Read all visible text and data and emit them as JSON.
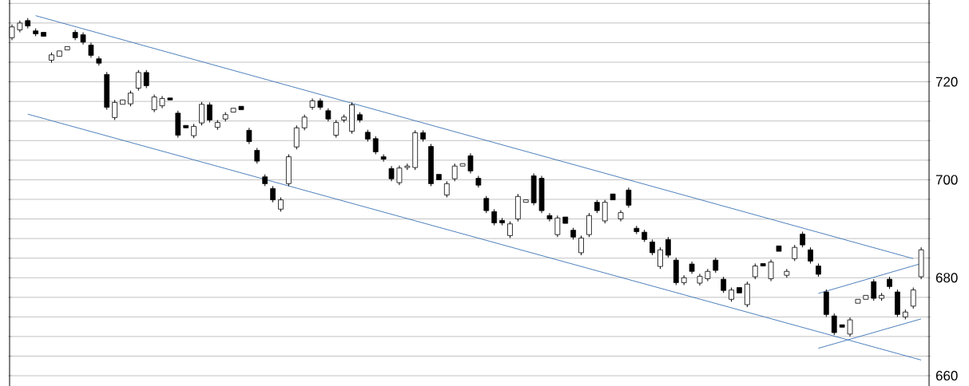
{
  "chart_data": {
    "type": "candlestick",
    "color": "#000000",
    "categories": [
      null,
      null,
      null,
      null,
      null,
      null,
      null,
      null,
      null,
      null,
      null,
      null,
      null,
      null,
      null,
      null,
      null,
      null,
      null,
      null,
      null,
      null,
      null,
      null,
      null,
      null,
      null,
      null,
      null,
      null,
      null,
      null,
      null,
      null,
      null,
      null,
      null,
      null,
      null,
      null,
      null,
      null,
      null,
      null,
      null,
      null,
      null,
      null,
      null,
      null,
      null,
      null,
      null,
      null,
      null,
      null,
      null,
      null,
      null,
      null,
      null,
      null,
      null,
      null,
      null,
      null,
      null,
      null,
      null,
      null,
      null,
      null,
      null,
      null,
      null,
      null,
      null,
      null,
      null,
      null,
      null,
      null,
      null,
      null,
      null,
      null,
      null,
      null,
      null,
      null,
      null,
      null,
      null,
      null,
      null,
      null,
      null,
      null,
      null,
      null,
      null,
      null,
      null,
      null,
      null,
      null,
      null,
      null,
      null,
      null,
      null,
      null,
      null,
      null,
      null,
      null
    ],
    "ohlc": [
      [
        729.0,
        731.7,
        728.5,
        731.2
      ],
      [
        730.6,
        732.5,
        730.1,
        732.0
      ],
      [
        732.5,
        733.0,
        730.9,
        731.4
      ],
      [
        730.4,
        730.9,
        729.3,
        729.8
      ],
      [
        730.1,
        730.1,
        729.3,
        729.3
      ],
      [
        724.4,
        726.0,
        723.9,
        725.5
      ],
      [
        725.2,
        726.3,
        725.2,
        726.3
      ],
      [
        726.5,
        727.2,
        726.5,
        727.2
      ],
      [
        730.1,
        730.6,
        728.5,
        729.0
      ],
      [
        729.6,
        730.1,
        727.6,
        728.1
      ],
      [
        727.5,
        728.0,
        724.9,
        725.4
      ],
      [
        724.7,
        725.2,
        723.3,
        723.8
      ],
      [
        721.5,
        722.0,
        714.3,
        714.8
      ],
      [
        712.7,
        716.3,
        712.2,
        715.8
      ],
      [
        715.4,
        716.3,
        715.4,
        716.3
      ],
      [
        715.5,
        718.2,
        715.0,
        717.7
      ],
      [
        718.7,
        722.4,
        718.2,
        721.9
      ],
      [
        721.9,
        722.4,
        718.7,
        719.2
      ],
      [
        714.3,
        717.4,
        713.8,
        716.9
      ],
      [
        715.1,
        717.1,
        714.6,
        716.6
      ],
      [
        716.7,
        716.7,
        716.3,
        716.3
      ],
      [
        713.6,
        714.1,
        708.6,
        709.1
      ],
      [
        711.1,
        711.1,
        710.6,
        710.6
      ],
      [
        709.0,
        711.4,
        708.5,
        710.9
      ],
      [
        711.6,
        715.9,
        711.1,
        715.4
      ],
      [
        715.3,
        715.8,
        711.7,
        712.2
      ],
      [
        710.7,
        712.2,
        710.2,
        711.7
      ],
      [
        712.4,
        713.8,
        711.9,
        713.3
      ],
      [
        713.8,
        714.6,
        713.8,
        714.6
      ],
      [
        715.0,
        715.0,
        714.3,
        714.3
      ],
      [
        710.1,
        710.6,
        707.3,
        707.8
      ],
      [
        706.0,
        706.5,
        703.3,
        703.8
      ],
      [
        700.6,
        701.1,
        698.7,
        699.2
      ],
      [
        698.2,
        698.7,
        695.4,
        695.9
      ],
      [
        694.0,
        696.4,
        693.5,
        695.9
      ],
      [
        699.2,
        705.2,
        698.7,
        704.7
      ],
      [
        706.7,
        711.1,
        706.2,
        710.6
      ],
      [
        710.6,
        713.3,
        710.1,
        712.8
      ],
      [
        714.8,
        716.6,
        714.3,
        716.1
      ],
      [
        716.1,
        716.6,
        714.3,
        714.8
      ],
      [
        714.1,
        714.6,
        711.9,
        712.4
      ],
      [
        709.1,
        712.2,
        708.6,
        711.7
      ],
      [
        712.2,
        713.3,
        711.7,
        712.8
      ],
      [
        709.9,
        715.8,
        709.4,
        715.3
      ],
      [
        713.3,
        713.8,
        711.7,
        712.2
      ],
      [
        709.7,
        710.2,
        707.8,
        708.3
      ],
      [
        708.4,
        708.9,
        705.2,
        705.7
      ],
      [
        704.7,
        705.2,
        703.7,
        704.2
      ],
      [
        702.3,
        702.8,
        699.7,
        700.2
      ],
      [
        699.4,
        702.9,
        698.9,
        702.4
      ],
      [
        702.5,
        703.3,
        702.0,
        702.8
      ],
      [
        702.5,
        710.1,
        702.0,
        709.6
      ],
      [
        709.6,
        710.1,
        707.8,
        708.3
      ],
      [
        706.8,
        707.3,
        698.7,
        699.2
      ],
      [
        701.1,
        701.1,
        700.0,
        700.0
      ],
      [
        696.9,
        699.7,
        696.4,
        699.2
      ],
      [
        700.2,
        703.3,
        699.7,
        702.8
      ],
      [
        702.8,
        703.3,
        702.8,
        703.3
      ],
      [
        704.9,
        705.4,
        701.3,
        701.8
      ],
      [
        700.3,
        700.8,
        698.4,
        698.9
      ],
      [
        696.2,
        696.7,
        693.2,
        693.7
      ],
      [
        693.5,
        694.0,
        690.7,
        691.2
      ],
      [
        691.7,
        692.2,
        690.7,
        691.2
      ],
      [
        688.6,
        691.5,
        688.1,
        691.0
      ],
      [
        692.0,
        697.1,
        691.5,
        696.6
      ],
      [
        695.4,
        695.9,
        695.4,
        695.9
      ],
      [
        700.8,
        701.3,
        694.8,
        695.3
      ],
      [
        700.3,
        700.8,
        693.2,
        693.7
      ],
      [
        692.7,
        693.2,
        691.5,
        692.0
      ],
      [
        688.8,
        692.7,
        688.3,
        692.2
      ],
      [
        692.4,
        692.4,
        691.1,
        691.1
      ],
      [
        689.7,
        690.2,
        687.8,
        688.3
      ],
      [
        685.1,
        688.6,
        684.6,
        688.1
      ],
      [
        688.8,
        693.2,
        688.3,
        692.7
      ],
      [
        695.4,
        695.9,
        693.2,
        693.7
      ],
      [
        691.6,
        695.9,
        691.1,
        695.4
      ],
      [
        697.1,
        697.1,
        695.9,
        695.9
      ],
      [
        692.0,
        693.8,
        691.5,
        693.3
      ],
      [
        697.9,
        698.4,
        694.3,
        694.8
      ],
      [
        690.1,
        690.6,
        688.9,
        689.4
      ],
      [
        689.3,
        689.8,
        687.3,
        687.8
      ],
      [
        687.3,
        687.8,
        684.6,
        685.1
      ],
      [
        682.3,
        686.2,
        681.8,
        685.7
      ],
      [
        687.8,
        688.3,
        684.1,
        684.6
      ],
      [
        683.6,
        684.1,
        678.5,
        679.0
      ],
      [
        679.0,
        680.5,
        678.5,
        680.0
      ],
      [
        682.8,
        683.3,
        680.8,
        681.3
      ],
      [
        678.9,
        680.8,
        678.4,
        680.3
      ],
      [
        679.8,
        681.8,
        679.3,
        681.3
      ],
      [
        683.6,
        684.1,
        681.0,
        681.5
      ],
      [
        679.7,
        680.2,
        676.9,
        677.4
      ],
      [
        675.6,
        678.0,
        675.1,
        677.5
      ],
      [
        678.0,
        678.0,
        676.9,
        676.9
      ],
      [
        674.5,
        679.2,
        674.0,
        678.7
      ],
      [
        680.2,
        682.9,
        679.7,
        682.4
      ],
      [
        682.9,
        682.9,
        682.4,
        682.4
      ],
      [
        679.8,
        683.7,
        679.3,
        683.2
      ],
      [
        686.5,
        686.5,
        685.4,
        685.4
      ],
      [
        680.5,
        681.8,
        680.0,
        681.3
      ],
      [
        683.9,
        686.7,
        683.4,
        686.2
      ],
      [
        688.9,
        689.4,
        686.2,
        686.7
      ],
      [
        685.7,
        686.2,
        682.9,
        683.4
      ],
      [
        682.4,
        682.9,
        680.2,
        680.7
      ],
      [
        677.1,
        677.6,
        672.0,
        672.5
      ],
      [
        672.2,
        672.7,
        668.3,
        668.8
      ],
      [
        670.4,
        670.4,
        669.9,
        669.9
      ],
      [
        668.5,
        671.9,
        668.0,
        671.4
      ],
      [
        674.8,
        675.6,
        674.8,
        675.6
      ],
      [
        675.6,
        676.4,
        675.6,
        676.4
      ],
      [
        679.2,
        679.7,
        675.3,
        675.8
      ],
      [
        675.8,
        676.9,
        675.3,
        676.4
      ],
      [
        679.7,
        680.2,
        677.7,
        678.2
      ],
      [
        677.1,
        677.6,
        672.0,
        672.5
      ],
      [
        672.0,
        673.5,
        671.5,
        673.0
      ],
      [
        674.2,
        678.0,
        673.7,
        677.5
      ],
      [
        680.2,
        686.2,
        679.7,
        685.7
      ]
    ],
    "series": [
      {
        "type": "line",
        "color": "#4f81bd",
        "values": [
          null,
          null,
          null,
          733.5,
          null,
          null,
          null,
          null,
          null,
          null,
          null,
          null,
          null,
          null,
          null,
          null,
          null,
          null,
          null,
          null,
          null,
          null,
          null,
          null,
          null,
          null,
          null,
          null,
          null,
          null,
          null,
          null,
          null,
          null,
          null,
          null,
          null,
          null,
          null,
          null,
          null,
          null,
          null,
          null,
          null,
          null,
          null,
          null,
          null,
          null,
          null,
          null,
          null,
          null,
          null,
          null,
          null,
          null,
          null,
          null,
          null,
          null,
          null,
          null,
          null,
          null,
          null,
          null,
          null,
          null,
          null,
          null,
          null,
          null,
          null,
          null,
          null,
          null,
          null,
          null,
          null,
          null,
          null,
          null,
          null,
          null,
          null,
          null,
          null,
          null,
          null,
          null,
          null,
          null,
          null,
          null,
          null,
          null,
          null,
          null,
          null,
          null,
          null,
          null,
          null,
          null,
          null,
          null,
          null,
          null,
          null,
          null,
          null,
          null,
          683.9,
          null
        ]
      },
      {
        "type": "line",
        "color": "#4f81bd",
        "values": [
          null,
          null,
          713.4,
          null,
          null,
          null,
          null,
          null,
          null,
          null,
          null,
          null,
          null,
          null,
          null,
          null,
          null,
          null,
          null,
          null,
          null,
          null,
          null,
          null,
          null,
          null,
          null,
          null,
          null,
          null,
          null,
          null,
          null,
          null,
          null,
          null,
          null,
          null,
          null,
          null,
          null,
          null,
          null,
          null,
          null,
          null,
          null,
          null,
          null,
          null,
          null,
          null,
          null,
          null,
          null,
          null,
          null,
          null,
          null,
          null,
          null,
          null,
          null,
          null,
          null,
          null,
          null,
          null,
          null,
          null,
          null,
          null,
          null,
          null,
          null,
          null,
          null,
          null,
          null,
          null,
          null,
          null,
          null,
          null,
          null,
          null,
          null,
          null,
          null,
          null,
          null,
          null,
          null,
          null,
          null,
          null,
          null,
          null,
          null,
          null,
          null,
          null,
          null,
          null,
          null,
          null,
          null,
          null,
          null,
          null,
          null,
          null,
          null,
          null,
          null,
          663.2
        ]
      },
      {
        "type": "line",
        "color": "#4f81bd",
        "values": [
          null,
          null,
          null,
          null,
          null,
          null,
          null,
          null,
          null,
          null,
          null,
          null,
          null,
          null,
          null,
          null,
          null,
          null,
          null,
          null,
          null,
          null,
          null,
          null,
          null,
          null,
          null,
          null,
          null,
          null,
          null,
          null,
          null,
          null,
          null,
          null,
          null,
          null,
          null,
          null,
          null,
          null,
          null,
          null,
          null,
          null,
          null,
          null,
          null,
          null,
          null,
          null,
          null,
          null,
          null,
          null,
          null,
          null,
          null,
          null,
          null,
          null,
          null,
          null,
          null,
          null,
          null,
          null,
          null,
          null,
          null,
          null,
          null,
          null,
          null,
          null,
          null,
          null,
          null,
          null,
          null,
          null,
          null,
          null,
          null,
          null,
          null,
          null,
          null,
          null,
          null,
          null,
          null,
          null,
          null,
          null,
          null,
          null,
          null,
          null,
          null,
          null,
          676.8,
          null,
          null,
          null,
          null,
          null,
          null,
          null,
          null,
          null,
          null,
          null,
          null,
          682.9
        ]
      },
      {
        "type": "line",
        "color": "#4f81bd",
        "values": [
          null,
          null,
          null,
          null,
          null,
          null,
          null,
          null,
          null,
          null,
          null,
          null,
          null,
          null,
          null,
          null,
          null,
          null,
          null,
          null,
          null,
          null,
          null,
          null,
          null,
          null,
          null,
          null,
          null,
          null,
          null,
          null,
          null,
          null,
          null,
          null,
          null,
          null,
          null,
          null,
          null,
          null,
          null,
          null,
          null,
          null,
          null,
          null,
          null,
          null,
          null,
          null,
          null,
          null,
          null,
          null,
          null,
          null,
          null,
          null,
          null,
          null,
          null,
          null,
          null,
          null,
          null,
          null,
          null,
          null,
          null,
          null,
          null,
          null,
          null,
          null,
          null,
          null,
          null,
          null,
          null,
          null,
          null,
          null,
          null,
          null,
          null,
          null,
          null,
          null,
          null,
          null,
          null,
          null,
          null,
          null,
          null,
          null,
          null,
          null,
          null,
          null,
          665.6,
          null,
          null,
          null,
          null,
          null,
          null,
          null,
          null,
          null,
          null,
          null,
          null,
          671.6
        ]
      }
    ],
    "ylim": [
      657.9,
      736.7
    ],
    "yticks": [
      660,
      {
        "value": 664,
        "label": null
      },
      {
        "value": 668,
        "label": null
      },
      {
        "value": 672,
        "label": null
      },
      {
        "value": 676,
        "label": null
      },
      680,
      {
        "value": 684,
        "label": null
      },
      {
        "value": 688,
        "label": null
      },
      {
        "value": 692,
        "label": null
      },
      {
        "value": 696,
        "label": null
      },
      700,
      {
        "value": 704,
        "label": null
      },
      {
        "value": 708,
        "label": null
      },
      {
        "value": 712,
        "label": null
      },
      {
        "value": 716,
        "label": null
      },
      720,
      {
        "value": 724,
        "label": null
      },
      {
        "value": 728,
        "label": null
      },
      {
        "value": 732,
        "label": null
      },
      {
        "value": 736,
        "label": null
      }
    ],
    "grid": "y",
    "tick_labels": "y"
  }
}
